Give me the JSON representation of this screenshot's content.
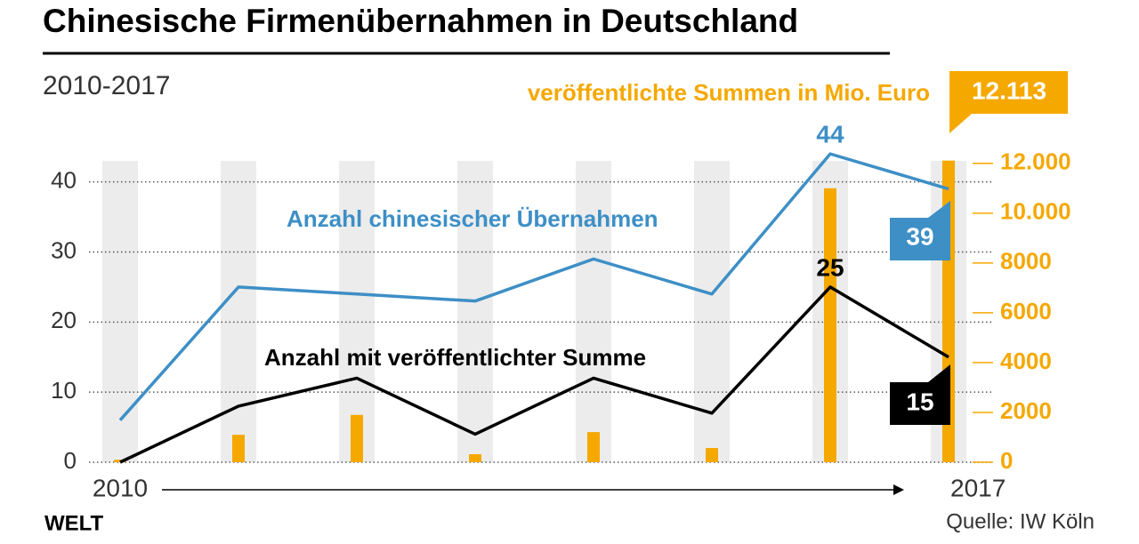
{
  "chart_data": {
    "type": "line",
    "title": "Chinesische Firmenübernahmen in Deutschland",
    "subtitle": "2010-2017",
    "categories": [
      "2010",
      null,
      null,
      null,
      null,
      null,
      null,
      "2017"
    ],
    "ylim": [
      0,
      43
    ],
    "yticks": [
      0,
      10,
      20,
      30,
      40
    ],
    "y2lim": [
      0,
      12100
    ],
    "y2ticks": [
      0,
      2000,
      4000,
      6000,
      8000,
      {
        "value": 10000,
        "label": "10.000"
      },
      {
        "value": 12000,
        "label": "12.000"
      }
    ],
    "grid": true,
    "series": [
      {
        "name": "veröffentlichte Summen in Mio. Euro",
        "type": "bar",
        "axis": "y2",
        "color": "#f5a800",
        "values": [
          100,
          1100,
          1900,
          320,
          1210,
          570,
          11000,
          12113
        ],
        "value_labels": [
          null,
          null,
          null,
          null,
          null,
          null,
          null,
          "12.113"
        ]
      },
      {
        "name": "Anzahl chinesischer Übernahmen",
        "color": "#3d8fc6",
        "values": [
          6,
          25,
          24,
          23,
          29,
          24,
          44,
          39
        ]
      },
      {
        "name": "Anzahl mit veröffentlichter Summe",
        "color": "#000000",
        "values": [
          0,
          8,
          12,
          4,
          12,
          7,
          25,
          15
        ]
      }
    ],
    "source": "Quelle: IW Köln",
    "logo": "WELT"
  }
}
